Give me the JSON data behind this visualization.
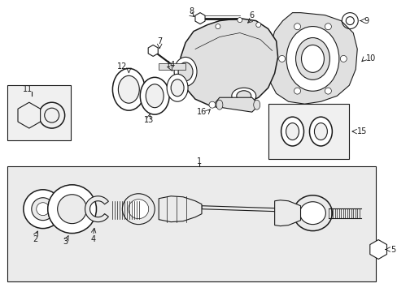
{
  "bg_color": "#ffffff",
  "line_color": "#1a1a1a",
  "light_gray": "#e0e0e0",
  "fig_width": 4.89,
  "fig_height": 3.6,
  "upper_box_bg": "#f0f0f0",
  "lower_box_bg": "#ebebeb"
}
